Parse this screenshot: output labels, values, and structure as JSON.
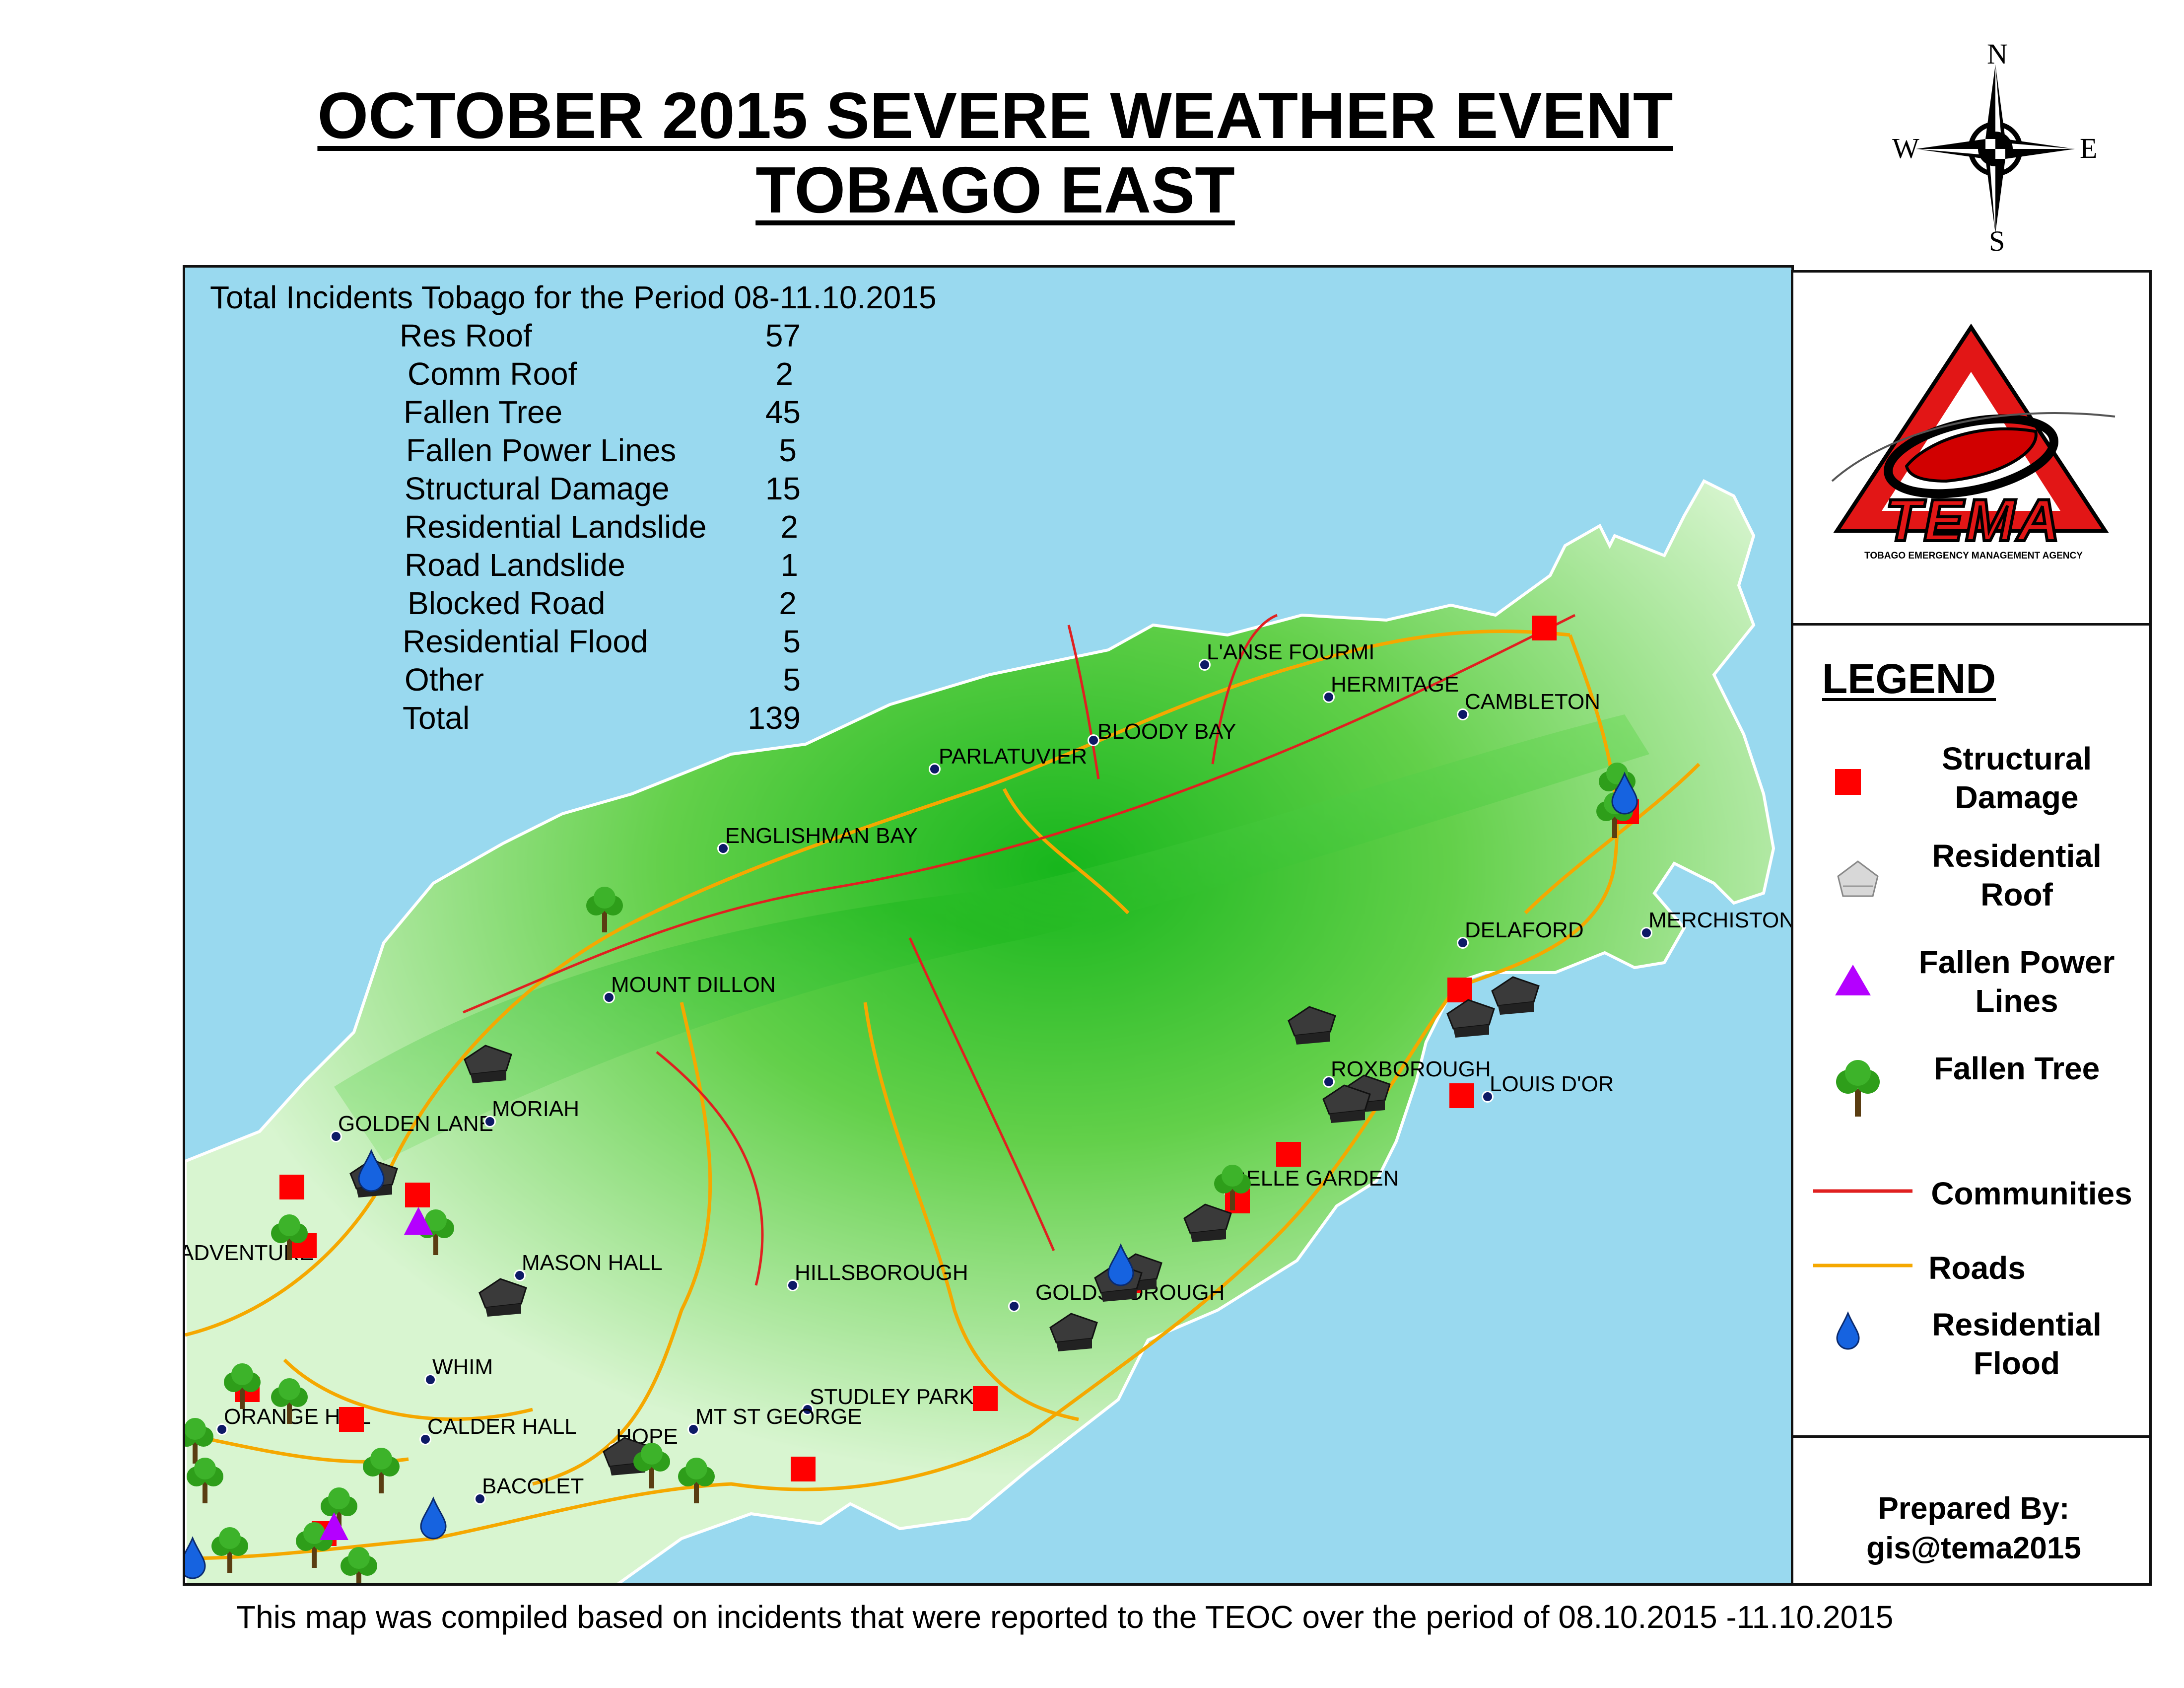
{
  "title": {
    "line1": "OCTOBER 2015 SEVERE WEATHER EVENT",
    "line2": "TOBAGO EAST"
  },
  "compass": {
    "n": "N",
    "s": "S",
    "e": "E",
    "w": "W"
  },
  "stats": {
    "heading": "Total Incidents Tobago for the Period 08-11.10.2015",
    "rows": [
      {
        "label": "Res Roof",
        "value": "57"
      },
      {
        "label": "Comm Roof",
        "value": "2"
      },
      {
        "label": "Fallen Tree",
        "value": "45"
      },
      {
        "label": "Fallen Power Lines",
        "value": "5"
      },
      {
        "label": "Structural Damage",
        "value": "15"
      },
      {
        "label": "Residential Landslide",
        "value": "2"
      },
      {
        "label": "Road Landslide",
        "value": "1"
      },
      {
        "label": "Blocked Road",
        "value": "2"
      },
      {
        "label": "Residential Flood",
        "value": "5"
      },
      {
        "label": "Other",
        "value": "5"
      },
      {
        "label": "Total",
        "value": "139"
      }
    ]
  },
  "places": [
    "L'ANSE FOURMI",
    "HERMITAGE",
    "CAMBLETON",
    "BLOODY BAY",
    "PARLATUVIER",
    "ENGLISHMAN BAY",
    "MOUNT DILLON",
    "DELAFORD",
    "MERCHISTON",
    "ROXBOROUGH",
    "LOUIS D'OR",
    "BELLE GARDEN",
    "GOLDEN LANE",
    "MORIAH",
    "ADVENTURE",
    "MASON HALL",
    "HILLSBOROUGH",
    "GOLDSBOROUGH",
    "WHIM",
    "STUDLEY PARK",
    "MT ST GEORGE",
    "ORANGE HILL",
    "CALDER HALL",
    "HOPE",
    "BACOLET"
  ],
  "logo": {
    "text": "TEMA",
    "subtitle": "TOBAGO EMERGENCY MANAGEMENT AGENCY"
  },
  "legend": {
    "title": "LEGEND",
    "items": [
      {
        "icon": "structural-damage-icon",
        "label": "Structural Damage"
      },
      {
        "icon": "residential-roof-icon",
        "label": "Residential Roof"
      },
      {
        "icon": "fallen-power-lines-icon",
        "label": "Fallen Power Lines"
      },
      {
        "icon": "fallen-tree-icon",
        "label": "Fallen Tree"
      },
      {
        "icon": "communities-line-icon",
        "label": "Communities"
      },
      {
        "icon": "roads-line-icon",
        "label": "Roads"
      },
      {
        "icon": "residential-flood-icon",
        "label": "Residential Flood"
      }
    ]
  },
  "prepared": {
    "line1": "Prepared By:",
    "line2": "gis@tema2015"
  },
  "footer": "This map was compiled based on incidents that were reported to the TEOC over the period of 08.10.2015 -11.10.2015",
  "colors": {
    "sea": "#99d9ef",
    "land_low": "#d8f5d0",
    "land_mid": "#7ddb5c",
    "land_high": "#17b61c",
    "structural": "#ff0000",
    "power": "#b400ff",
    "tree": "#2e9e1a",
    "flood": "#1663e0",
    "communities": "#e02020",
    "roads": "#f5a800"
  }
}
